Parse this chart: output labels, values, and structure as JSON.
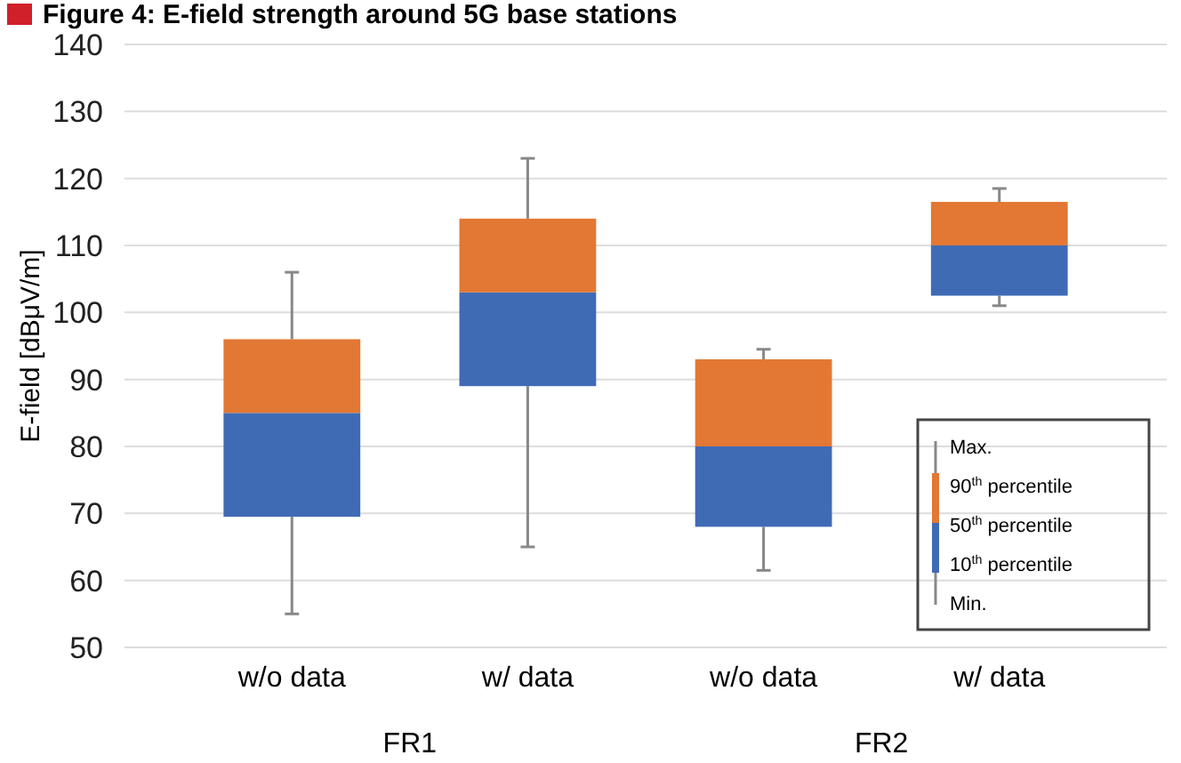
{
  "chart_data": {
    "type": "box",
    "title": "Figure 4: E-field strength around 5G base stations",
    "ylabel": "E-field [dBμV/m]",
    "categories": [
      "w/o data",
      "w/ data",
      "w/o data",
      "w/ data"
    ],
    "boxes": [
      {
        "low": 55,
        "q1": 69.5,
        "median": 85,
        "q3": 96,
        "high": 106
      },
      {
        "low": 65,
        "q1": 89,
        "median": 103,
        "q3": 114,
        "high": 123
      },
      {
        "low": 61.5,
        "q1": 68,
        "median": 80,
        "q3": 93,
        "high": 94.5
      },
      {
        "low": 101,
        "q1": 102.5,
        "median": 110,
        "q3": 116.5,
        "high": 118.5
      }
    ],
    "color": "#e27833",
    "colors": [
      "#3f6bb5",
      "#3f6bb5",
      "#3f6bb5",
      "#3f6bb5"
    ],
    "ylim": [
      50,
      140
    ],
    "yticks": [
      50,
      60,
      70,
      80,
      90,
      100,
      110,
      120,
      130,
      140
    ],
    "grid": "y",
    "annotations": [
      "FR1",
      "FR2",
      "Max.",
      "90$^{th}$ percentile",
      "50$^{th}$ percentile",
      "10$^{th}$ percentile",
      "Min."
    ]
  }
}
